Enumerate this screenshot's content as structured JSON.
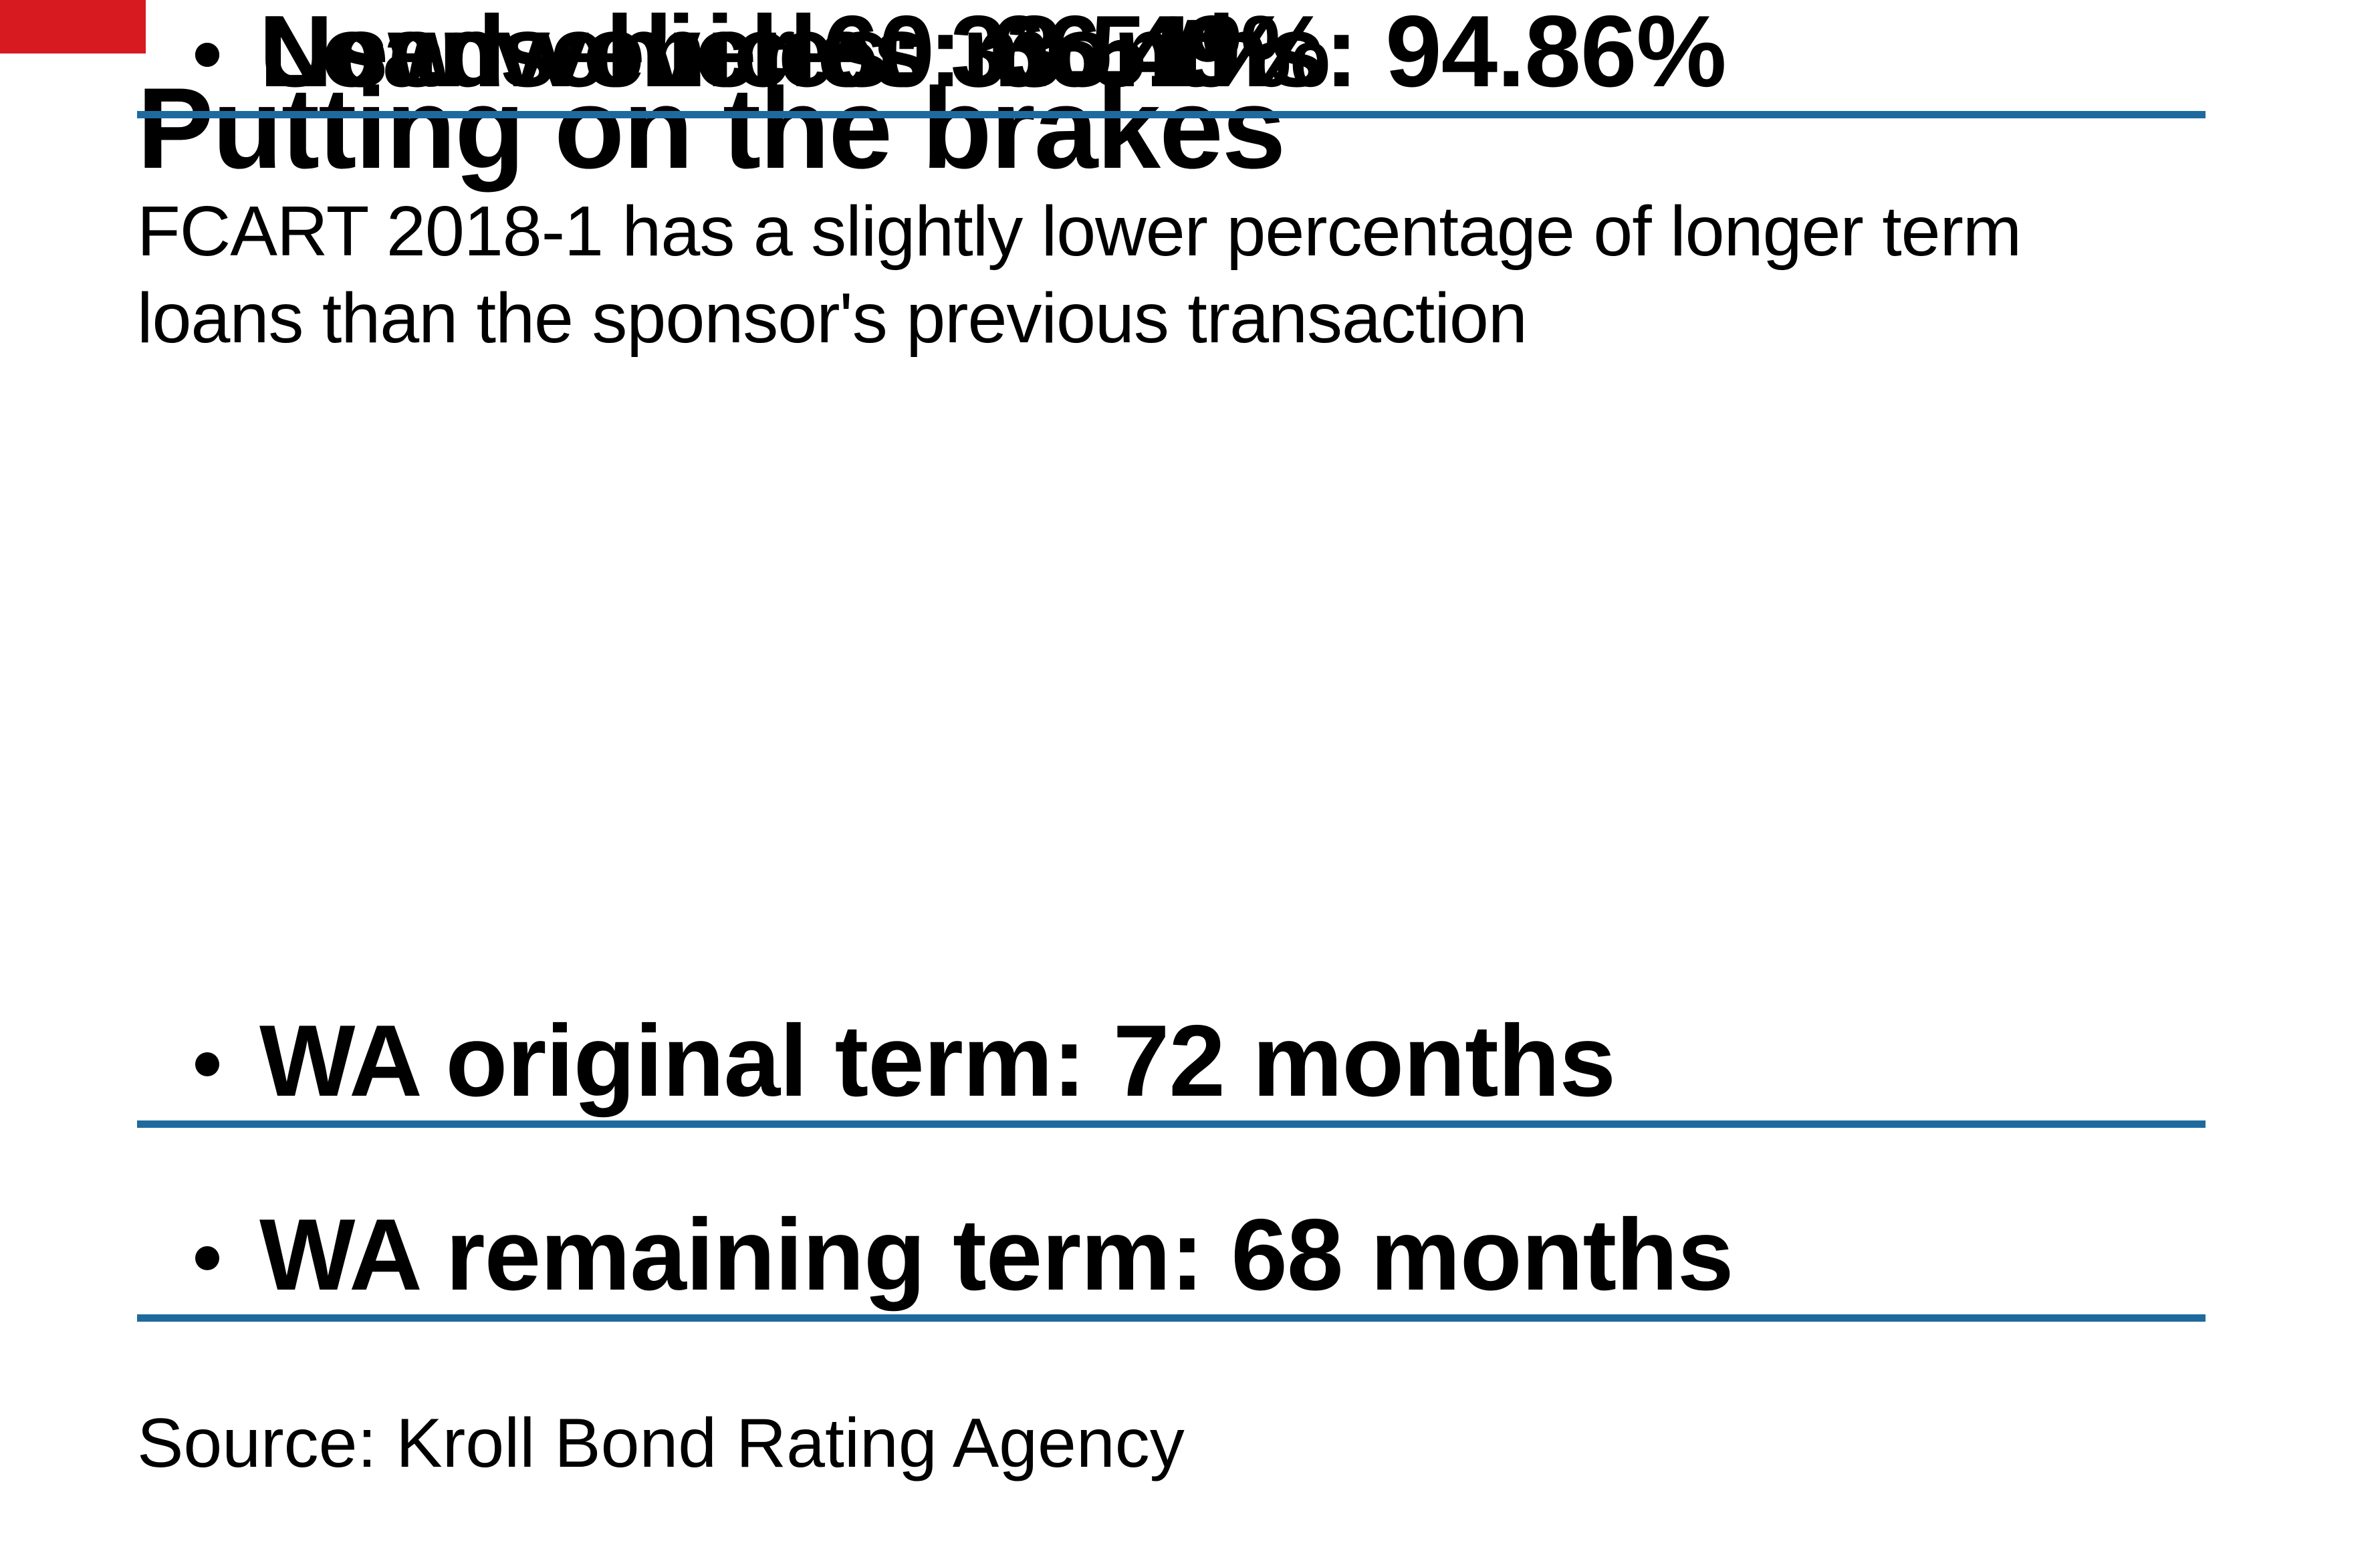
{
  "page": {
    "background_color": "#ffffff",
    "text_color": "#000000",
    "accent_rule_color": "#1e6a9e",
    "corner_tab_color": "#d71920"
  },
  "header": {
    "title": "Putting on the brakes",
    "subtitle_line1": "FCART 2018-1 has a slightly lower percentage of longer term",
    "subtitle_line2": "loans than the sponsor's previous transaction"
  },
  "bullets": [
    {
      "text": "WA original term: 72 months"
    },
    {
      "text": "WA remaining term: 68 months"
    },
    {
      "text": "Loans over 60 months: 94.86%"
    },
    {
      "text": "New vehicles: 33.51%"
    },
    {
      "text": "Used vehicles: 66.49%"
    }
  ],
  "footer": {
    "source": "Source: Kroll Bond Rating Agency"
  },
  "chart_data": {
    "type": "table",
    "title": "Putting on the brakes",
    "subtitle": "FCART 2018-1 has a slightly lower percentage of longer term loans than the sponsor's previous transaction",
    "metrics": [
      {
        "label": "WA original term",
        "value": "72 months"
      },
      {
        "label": "WA remaining term",
        "value": "68 months"
      },
      {
        "label": "Loans over 60 months",
        "value": "94.86%",
        "value_numeric": 94.86,
        "unit": "%"
      },
      {
        "label": "New vehicles",
        "value": "33.51%",
        "value_numeric": 33.51,
        "unit": "%"
      },
      {
        "label": "Used vehicles",
        "value": "66.49%",
        "value_numeric": 66.49,
        "unit": "%"
      }
    ],
    "source": "Source: Kroll Bond Rating Agency",
    "layout": {
      "legend": "none",
      "grid": "horizontal-dividers"
    }
  }
}
